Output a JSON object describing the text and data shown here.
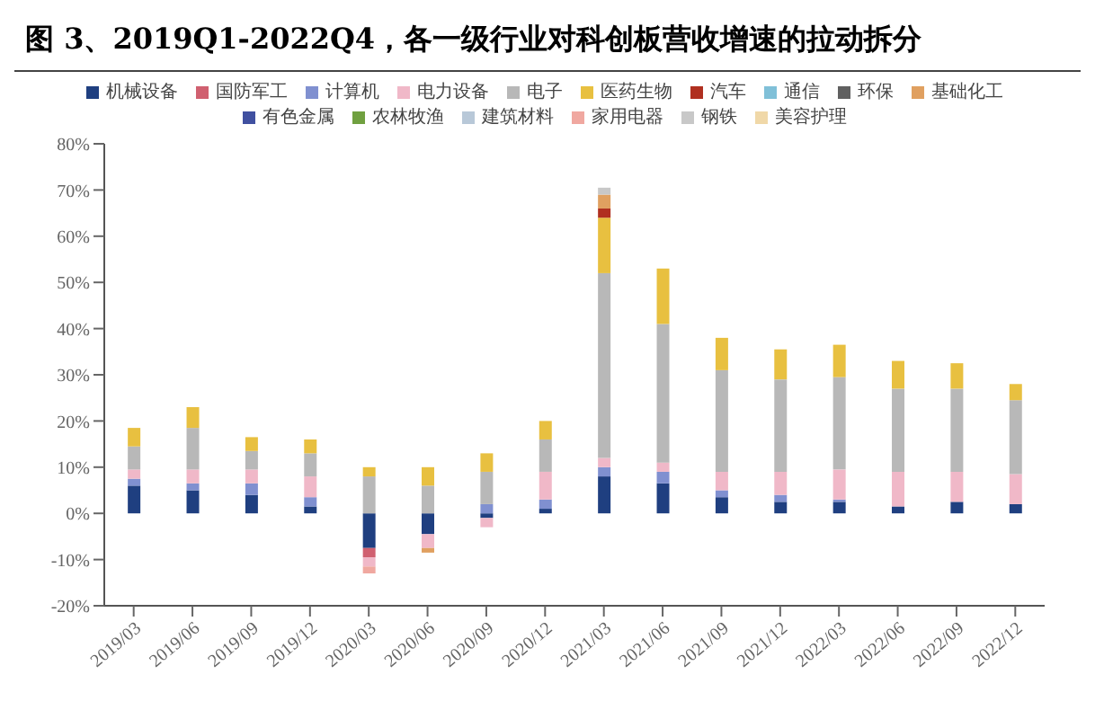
{
  "chart_data": {
    "type": "bar",
    "title": "图 3、2019Q1-2022Q4，各一级行业对科创板营收增速的拉动拆分",
    "categories": [
      "2019/03",
      "2019/06",
      "2019/09",
      "2019/12",
      "2020/03",
      "2020/06",
      "2020/09",
      "2020/12",
      "2021/03",
      "2021/06",
      "2021/09",
      "2021/12",
      "2022/03",
      "2022/06",
      "2022/09",
      "2022/12"
    ],
    "stacked": true,
    "legend": "top",
    "grid": false,
    "ylim": [
      -20,
      80
    ],
    "yticks": [
      {
        "value": -20,
        "label": "-20%"
      },
      {
        "value": -10,
        "label": "-10%"
      },
      {
        "value": 0,
        "label": "0%"
      },
      {
        "value": 10,
        "label": "10%"
      },
      {
        "value": 20,
        "label": "20%"
      },
      {
        "value": 30,
        "label": "30%"
      },
      {
        "value": 40,
        "label": "40%"
      },
      {
        "value": 50,
        "label": "50%"
      },
      {
        "value": 60,
        "label": "60%"
      },
      {
        "value": 70,
        "label": "70%"
      },
      {
        "value": 80,
        "label": "80%"
      }
    ],
    "series": [
      {
        "name": "机械设备",
        "color": "#1f3f80",
        "values": [
          6,
          5,
          4,
          1.5,
          -7.5,
          -4.5,
          -1,
          1,
          8,
          6.5,
          3.5,
          2.5,
          2.5,
          1.5,
          2.5,
          2
        ]
      },
      {
        "name": "国防军工",
        "color": "#d06070",
        "values": [
          null,
          null,
          null,
          null,
          -2,
          null,
          null,
          null,
          null,
          null,
          null,
          null,
          null,
          null,
          null,
          null
        ]
      },
      {
        "name": "计算机",
        "color": "#8090d0",
        "values": [
          1.5,
          1.5,
          2.5,
          2,
          null,
          null,
          2,
          2,
          2,
          2.5,
          1.5,
          1.5,
          0.5,
          null,
          null,
          null
        ]
      },
      {
        "name": "电力设备",
        "color": "#f0b8c8",
        "values": [
          2,
          3,
          3,
          4.5,
          -2,
          -3,
          -2,
          6,
          2,
          2,
          4,
          5,
          6.5,
          7.5,
          6.5,
          6.5
        ]
      },
      {
        "name": "电子",
        "color": "#b8b8b8",
        "values": [
          5,
          9,
          4,
          5,
          8,
          6,
          7,
          7,
          40,
          30,
          22,
          20,
          20,
          18,
          18,
          16
        ]
      },
      {
        "name": "医药生物",
        "color": "#e8c040",
        "values": [
          4,
          4.5,
          3,
          3,
          2,
          4,
          4,
          4,
          12,
          12,
          7,
          6.5,
          7,
          6,
          5.5,
          3.5
        ]
      },
      {
        "name": "汽车",
        "color": "#b03020",
        "values": [
          null,
          null,
          null,
          null,
          null,
          null,
          null,
          null,
          2,
          null,
          null,
          null,
          null,
          null,
          null,
          null
        ]
      },
      {
        "name": "通信",
        "color": "#80c0d8",
        "values": [
          null,
          null,
          null,
          null,
          null,
          null,
          null,
          null,
          null,
          null,
          null,
          null,
          null,
          null,
          null,
          null
        ]
      },
      {
        "name": "环保",
        "color": "#606060",
        "values": [
          null,
          null,
          null,
          null,
          null,
          null,
          null,
          null,
          null,
          null,
          null,
          null,
          null,
          null,
          null,
          null
        ]
      },
      {
        "name": "基础化工",
        "color": "#e0a060",
        "values": [
          null,
          null,
          null,
          null,
          null,
          -1,
          null,
          null,
          3,
          null,
          null,
          null,
          null,
          null,
          null,
          null
        ]
      },
      {
        "name": "有色金属",
        "color": "#4050a0",
        "values": [
          null,
          null,
          null,
          null,
          null,
          null,
          null,
          null,
          null,
          null,
          null,
          null,
          null,
          null,
          null,
          null
        ]
      },
      {
        "name": "农林牧渔",
        "color": "#70a040",
        "values": [
          null,
          null,
          null,
          null,
          null,
          null,
          null,
          null,
          null,
          null,
          null,
          null,
          null,
          null,
          null,
          null
        ]
      },
      {
        "name": "建筑材料",
        "color": "#b8c8d8",
        "values": [
          null,
          null,
          null,
          null,
          null,
          null,
          null,
          null,
          null,
          null,
          null,
          null,
          null,
          null,
          null,
          null
        ]
      },
      {
        "name": "家用电器",
        "color": "#f0a8a0",
        "values": [
          null,
          null,
          null,
          null,
          -1.5,
          null,
          null,
          null,
          null,
          null,
          null,
          null,
          null,
          null,
          null,
          null
        ]
      },
      {
        "name": "钢铁",
        "color": "#c8c8c8",
        "values": [
          null,
          null,
          null,
          null,
          null,
          null,
          null,
          null,
          1.5,
          null,
          null,
          null,
          null,
          null,
          null,
          null
        ]
      },
      {
        "name": "美容护理",
        "color": "#f0d8a8",
        "values": [
          null,
          null,
          null,
          null,
          null,
          null,
          null,
          null,
          null,
          null,
          null,
          null,
          null,
          null,
          null,
          null
        ]
      }
    ]
  }
}
